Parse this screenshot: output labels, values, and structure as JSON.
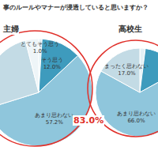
{
  "title": "事のルールやマナーが浸透していると思いますか？",
  "chart_data": [
    {
      "type": "pie",
      "title": "主婦",
      "categories": [
        "とてもそう思う",
        "そう思う",
        "あまり思わない",
        null,
        null
      ],
      "values": [
        1.0,
        12.0,
        57.2,
        25.8,
        4.0
      ],
      "value_labels": [
        "1.0%",
        "12.0%",
        "57.2%",
        null,
        null
      ],
      "colors": [
        "#e3f1f6",
        "#3e9bbd",
        "#8fc6dc",
        "#c3dbe5",
        "#eef5f8"
      ],
      "annotation": "83.0%"
    },
    {
      "type": "pie",
      "title": "高校生",
      "categories": [
        null,
        null,
        "あまり思わない",
        "まったく思わない"
      ],
      "values": [
        2.0,
        15.0,
        66.0,
        17.0
      ],
      "value_labels": [
        null,
        null,
        "66.0%",
        "17.0%"
      ],
      "colors": [
        "#e3f1f6",
        "#3e9bbd",
        "#8fc6dc",
        "#c3dbe5"
      ]
    }
  ]
}
